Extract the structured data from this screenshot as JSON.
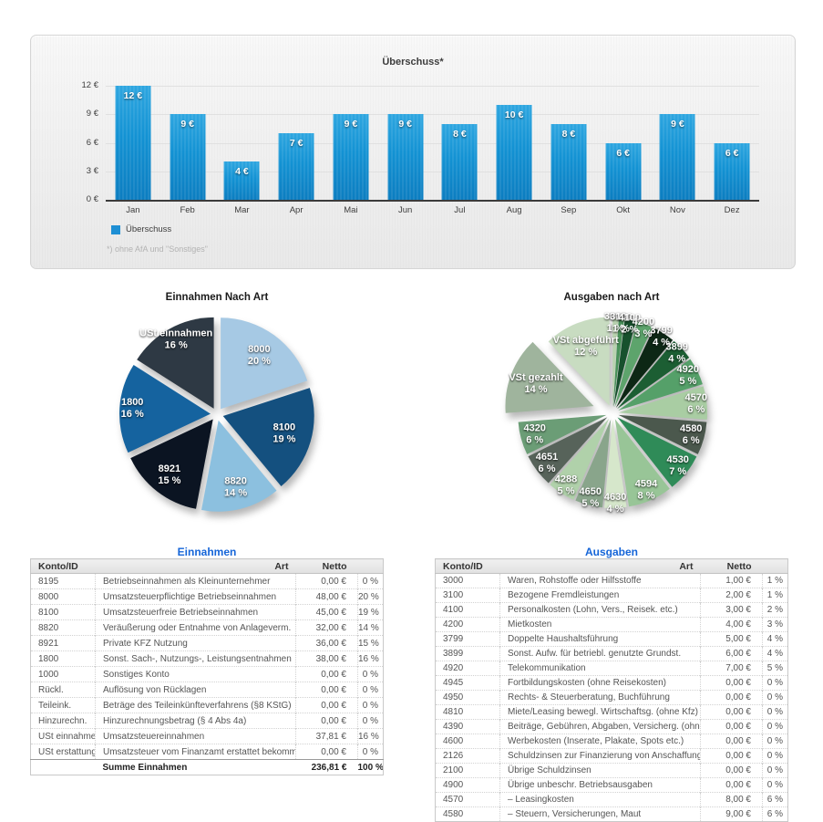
{
  "colors": {
    "bar_blue_top": "#2ea6e0",
    "bar_blue_bottom": "#0c7dc0",
    "legend_swatch": "#1e8fd4",
    "table_title_blue": "#1565d8"
  },
  "chart_data": [
    {
      "type": "bar",
      "title": "Überschuss*",
      "categories": [
        "Jan",
        "Feb",
        "Mar",
        "Apr",
        "Mai",
        "Jun",
        "Jul",
        "Aug",
        "Sep",
        "Okt",
        "Nov",
        "Dez"
      ],
      "values": [
        12,
        9,
        4,
        7,
        9,
        9,
        8,
        10,
        8,
        6,
        9,
        6
      ],
      "bar_labels": [
        "12 €",
        "9 €",
        "4 €",
        "7 €",
        "9 €",
        "9 €",
        "8 €",
        "10 €",
        "8 €",
        "6 €",
        "9 €",
        "6 €"
      ],
      "ylim": [
        0,
        12
      ],
      "y_ticks": [
        {
          "v": 12,
          "label": "12 €"
        },
        {
          "v": 9,
          "label": "9 €"
        },
        {
          "v": 6,
          "label": "6 €"
        },
        {
          "v": 3,
          "label": "3 €"
        },
        {
          "v": 0,
          "label": "0 €"
        }
      ],
      "grid": true,
      "legend_position": "bottom-left",
      "legend": [
        {
          "label": "Überschuss",
          "color": "#1e8fd4"
        }
      ],
      "footnote": "*) ohne AfA und \"Sonstiges\""
    },
    {
      "type": "pie",
      "title": "Einnahmen Nach Art",
      "explode": 7,
      "slices": [
        {
          "label": "8000",
          "pct": 20,
          "pct_label": "20 %",
          "color": "#a6c9e4",
          "lr": 0.72
        },
        {
          "label": "8100",
          "pct": 19,
          "pct_label": "19 %",
          "color": "#14507f",
          "lr": 0.7
        },
        {
          "label": "8820",
          "pct": 14,
          "pct_label": "14 %",
          "color": "#8cc0df",
          "lr": 0.76
        },
        {
          "label": "8921",
          "pct": 15,
          "pct_label": "15 %",
          "color": "#0b1422",
          "lr": 0.78
        },
        {
          "label": "1800",
          "pct": 16,
          "pct_label": "16 %",
          "color": "#15639f",
          "lr": 0.86
        },
        {
          "label": "USt einnahmen",
          "pct": 16,
          "pct_label": "16 %",
          "color": "#2e3944",
          "lr": 0.86
        }
      ]
    },
    {
      "type": "pie",
      "title": "Ausgaben nach Art",
      "explode": 7,
      "slices": [
        {
          "label": "3000",
          "pct": 1,
          "pct_label": "1 %",
          "color": "#b9d3b0",
          "lr": 0.95
        },
        {
          "label": "3100",
          "pct": 1,
          "pct_label": "1 %",
          "color": "#49925a",
          "lr": 0.95
        },
        {
          "label": "4100",
          "pct": 2,
          "pct_label": "2 %",
          "color": "#17512d",
          "lr": 0.95
        },
        {
          "label": "4200",
          "pct": 3,
          "pct_label": "3 %",
          "color": "#5da46c",
          "lr": 0.95
        },
        {
          "label": "3799",
          "pct": 4,
          "pct_label": "4 %",
          "color": "#0d2715",
          "lr": 0.95
        },
        {
          "label": "3899",
          "pct": 4,
          "pct_label": "4 %",
          "color": "#1c5e33",
          "lr": 0.92
        },
        {
          "label": "4920",
          "pct": 5,
          "pct_label": "5 %",
          "color": "#55a069",
          "lr": 0.88
        },
        {
          "label": "4570",
          "pct": 6,
          "pct_label": "6 %",
          "color": "#a9cda3",
          "lr": 0.88
        },
        {
          "label": "4580",
          "pct": 6,
          "pct_label": "6 %",
          "color": "#4b584d",
          "lr": 0.85
        },
        {
          "label": "4530",
          "pct": 7,
          "pct_label": "7 %",
          "color": "#2f8b58",
          "lr": 0.88
        },
        {
          "label": "4594",
          "pct": 8,
          "pct_label": "8 %",
          "color": "#98c597",
          "lr": 0.88
        },
        {
          "label": "4630",
          "pct": 4,
          "pct_label": "4 %",
          "color": "#d6e7cb",
          "lr": 0.95
        },
        {
          "label": "4650",
          "pct": 5,
          "pct_label": "5 %",
          "color": "#89a58b",
          "lr": 0.92
        },
        {
          "label": "4288",
          "pct": 5,
          "pct_label": "5 %",
          "color": "#b0d1aa",
          "lr": 0.9
        },
        {
          "label": "4651",
          "pct": 6,
          "pct_label": "6 %",
          "color": "#57635a",
          "lr": 0.86
        },
        {
          "label": "4320",
          "pct": 6,
          "pct_label": "6 %",
          "color": "#6b9d76",
          "lr": 0.84
        },
        {
          "label": "VSt gezahlt",
          "pct": 14,
          "pct_label": "14 %",
          "color": "#9fb49d",
          "lr": 0.7,
          "explode": 22
        },
        {
          "label": "VSt abgeführt",
          "pct": 12,
          "pct_label": "12 %",
          "color": "#c8dcc1",
          "lr": 0.72,
          "explode": 9
        }
      ]
    }
  ],
  "tables": {
    "einnahmen": {
      "title": "Einnahmen",
      "columns": {
        "konto": "Konto/ID",
        "art": "Art",
        "netto": "Netto",
        "pct": ""
      },
      "rows": [
        {
          "konto": "8195",
          "desc": "Betriebseinnahmen als Kleinunternehmer",
          "netto": "0,00 €",
          "pct": "0 %"
        },
        {
          "konto": "8000",
          "desc": "Umsatzsteuerpflichtige Betriebseinnahmen",
          "netto": "48,00 €",
          "pct": "20 %"
        },
        {
          "konto": "8100",
          "desc": "Umsatzsteuerfreie Betriebseinnahmen",
          "netto": "45,00 €",
          "pct": "19 %"
        },
        {
          "konto": "8820",
          "desc": "Veräußerung oder Entnahme von Anlageverm.",
          "netto": "32,00 €",
          "pct": "14 %"
        },
        {
          "konto": "8921",
          "desc": "Private KFZ Nutzung",
          "netto": "36,00 €",
          "pct": "15 %"
        },
        {
          "konto": "1800",
          "desc": "Sonst. Sach-, Nutzungs-, Leistungsentnahmen",
          "netto": "38,00 €",
          "pct": "16 %"
        },
        {
          "konto": "1000",
          "desc": "Sonstiges Konto",
          "netto": "0,00 €",
          "pct": "0 %"
        },
        {
          "konto": "Rückl.",
          "desc": "Auflösung von Rücklagen",
          "netto": "0,00 €",
          "pct": "0 %"
        },
        {
          "konto": "Teileink.",
          "desc": "Beträge des Teileinkünfteverfahrens (§8 KStG)",
          "netto": "0,00 €",
          "pct": "0 %"
        },
        {
          "konto": "Hinzurechn.",
          "desc": "Hinzurechnungsbetrag (§ 4 Abs 4a)",
          "netto": "0,00 €",
          "pct": "0 %"
        },
        {
          "konto": "USt einnahmen",
          "desc": "Umsatzsteuereinnahmen",
          "netto": "37,81 €",
          "pct": "16 %"
        },
        {
          "konto": "USt erstattung",
          "desc": "Umsatzsteuer vom Finanzamt erstattet bekommen",
          "netto": "0,00 €",
          "pct": "0 %"
        }
      ],
      "total": {
        "konto": "",
        "desc": "Summe Einnahmen",
        "netto": "236,81 €",
        "pct": "100 %"
      }
    },
    "ausgaben": {
      "title": "Ausgaben",
      "columns": {
        "konto": "Konto/ID",
        "art": "Art",
        "netto": "Netto",
        "pct": ""
      },
      "rows": [
        {
          "konto": "3000",
          "desc": "Waren, Rohstoffe oder Hilfsstoffe",
          "netto": "1,00 €",
          "pct": "1 %"
        },
        {
          "konto": "3100",
          "desc": "Bezogene Fremdleistungen",
          "netto": "2,00 €",
          "pct": "1 %"
        },
        {
          "konto": "4100",
          "desc": "Personalkosten (Lohn, Vers., Reisek. etc.)",
          "netto": "3,00 €",
          "pct": "2 %"
        },
        {
          "konto": "4200",
          "desc": "Mietkosten",
          "netto": "4,00 €",
          "pct": "3 %"
        },
        {
          "konto": "3799",
          "desc": "Doppelte Haushaltsführung",
          "netto": "5,00 €",
          "pct": "4 %"
        },
        {
          "konto": "3899",
          "desc": "Sonst. Aufw. für betriebl. genutzte Grundst.",
          "netto": "6,00 €",
          "pct": "4 %"
        },
        {
          "konto": "4920",
          "desc": "Telekommunikation",
          "netto": "7,00 €",
          "pct": "5 %"
        },
        {
          "konto": "4945",
          "desc": "Fortbildungskosten (ohne Reisekosten)",
          "netto": "0,00 €",
          "pct": "0 %"
        },
        {
          "konto": "4950",
          "desc": "Rechts- & Steuerberatung, Buchführung",
          "netto": "0,00 €",
          "pct": "0 %"
        },
        {
          "konto": "4810",
          "desc": "Miete/Leasing bewegl. Wirtschaftsg. (ohne Kfz)",
          "netto": "0,00 €",
          "pct": "0 %"
        },
        {
          "konto": "4390",
          "desc": "Beiträge, Gebühren, Abgaben, Versicherg. (ohne Gebäud",
          "netto": "0,00 €",
          "pct": "0 %"
        },
        {
          "konto": "4600",
          "desc": "Werbekosten (Inserate, Plakate, Spots etc.)",
          "netto": "0,00 €",
          "pct": "0 %"
        },
        {
          "konto": "2126",
          "desc": "Schuldzinsen zur Finanzierung von Anschaffungs- und He",
          "netto": "0,00 €",
          "pct": "0 %"
        },
        {
          "konto": "2100",
          "desc": "Übrige Schuldzinsen",
          "netto": "0,00 €",
          "pct": "0 %"
        },
        {
          "konto": "4900",
          "desc": "Übrige unbeschr. Betriebsausgaben",
          "netto": "0,00 €",
          "pct": "0 %"
        },
        {
          "konto": "4570",
          "desc": "–  Leasingkosten",
          "netto": "8,00 €",
          "pct": "6 %"
        },
        {
          "konto": "4580",
          "desc": "–  Steuern, Versicherungen, Maut",
          "netto": "9,00 €",
          "pct": "6 %"
        }
      ]
    }
  }
}
